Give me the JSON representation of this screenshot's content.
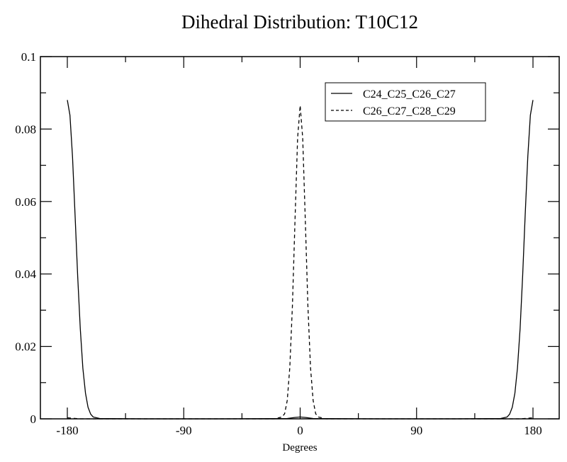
{
  "chart_data": {
    "type": "line",
    "title": "Dihedral Distribution: T10C12",
    "xlabel": "Degrees",
    "ylabel": "",
    "xlim": [
      -200,
      200
    ],
    "ylim": [
      0,
      0.1
    ],
    "xticks": [
      -180,
      -90,
      0,
      90,
      180
    ],
    "xtick_labels": [
      "-180",
      "-90",
      "0",
      "90",
      "180"
    ],
    "yticks": [
      0,
      0.02,
      0.04,
      0.06,
      0.08,
      0.1
    ],
    "ytick_labels": [
      "0",
      "0.02",
      "0.04",
      "0.06",
      "0.08",
      "0.1"
    ],
    "grid": false,
    "legend_position": "upper right",
    "series": [
      {
        "name": "C24_C25_C26_C27",
        "style": "solid",
        "x": [
          -180,
          -178,
          -176,
          -174,
          -172,
          -170,
          -168,
          -166,
          -164,
          -162,
          -160,
          -155,
          -120,
          -60,
          -10,
          -4,
          0,
          4,
          10,
          60,
          120,
          155,
          160,
          162,
          164,
          166,
          168,
          170,
          172,
          174,
          176,
          178,
          180
        ],
        "y": [
          0.088,
          0.0838,
          0.0724,
          0.0563,
          0.0394,
          0.0248,
          0.014,
          0.0071,
          0.0032,
          0.0013,
          0.0005,
          0.0001,
          0,
          0,
          0.0001,
          0.0004,
          0.0005,
          0.0004,
          0.0001,
          0,
          0,
          0.0001,
          0.0005,
          0.0013,
          0.0032,
          0.0071,
          0.014,
          0.0248,
          0.0394,
          0.0563,
          0.0724,
          0.0838,
          0.088
        ]
      },
      {
        "name": "C26_C27_C28_C29",
        "style": "dashed",
        "x": [
          -180,
          -170,
          -120,
          -60,
          -20,
          -14,
          -12,
          -10,
          -8,
          -6,
          -4,
          -2,
          0,
          2,
          4,
          6,
          8,
          10,
          12,
          14,
          20,
          60,
          120,
          170,
          180
        ],
        "y": [
          0.0003,
          0,
          0,
          0,
          0,
          0.0005,
          0.0014,
          0.0051,
          0.0142,
          0.0313,
          0.0546,
          0.0775,
          0.0865,
          0.0775,
          0.0546,
          0.0313,
          0.0142,
          0.0051,
          0.0014,
          0.0005,
          0,
          0,
          0,
          0,
          0.0003
        ]
      }
    ]
  }
}
